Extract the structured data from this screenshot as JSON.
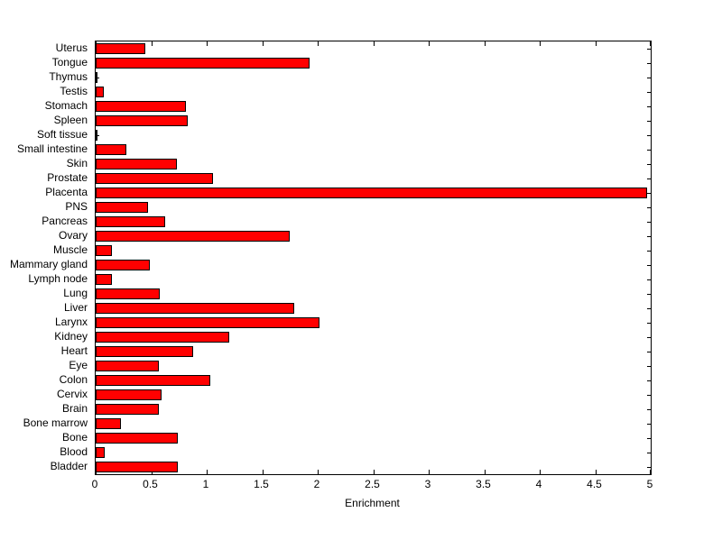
{
  "chart_data": {
    "type": "bar",
    "orientation": "horizontal",
    "title": "",
    "xlabel": "Enrichment",
    "ylabel": "",
    "xlim": [
      0,
      5
    ],
    "xticks": [
      0,
      0.5,
      1,
      1.5,
      2,
      2.5,
      3,
      3.5,
      4,
      4.5,
      5
    ],
    "xtick_labels": [
      "0",
      "0.5",
      "1",
      "1.5",
      "2",
      "2.5",
      "3",
      "3.5",
      "4",
      "4.5",
      "5"
    ],
    "grid": false,
    "legend": "none",
    "bar_color": "#ff0000",
    "bar_edge_color": "#000000",
    "categories": [
      "Uterus",
      "Tongue",
      "Thymus",
      "Testis",
      "Stomach",
      "Spleen",
      "Soft tissue",
      "Small intestine",
      "Skin",
      "Prostate",
      "Placenta",
      "PNS",
      "Pancreas",
      "Ovary",
      "Muscle",
      "Mammary gland",
      "Lymph node",
      "Lung",
      "Liver",
      "Larynx",
      "Kidney",
      "Heart",
      "Eye",
      "Colon",
      "Cervix",
      "Brain",
      "Bone marrow",
      "Bone",
      "Blood",
      "Bladder"
    ],
    "values": [
      0.45,
      1.93,
      0.02,
      0.07,
      0.81,
      0.83,
      0.02,
      0.28,
      0.73,
      1.06,
      4.97,
      0.47,
      0.63,
      1.75,
      0.15,
      0.49,
      0.15,
      0.58,
      1.79,
      2.02,
      1.2,
      0.88,
      0.57,
      1.03,
      0.59,
      0.57,
      0.23,
      0.74,
      0.08,
      0.74
    ]
  }
}
